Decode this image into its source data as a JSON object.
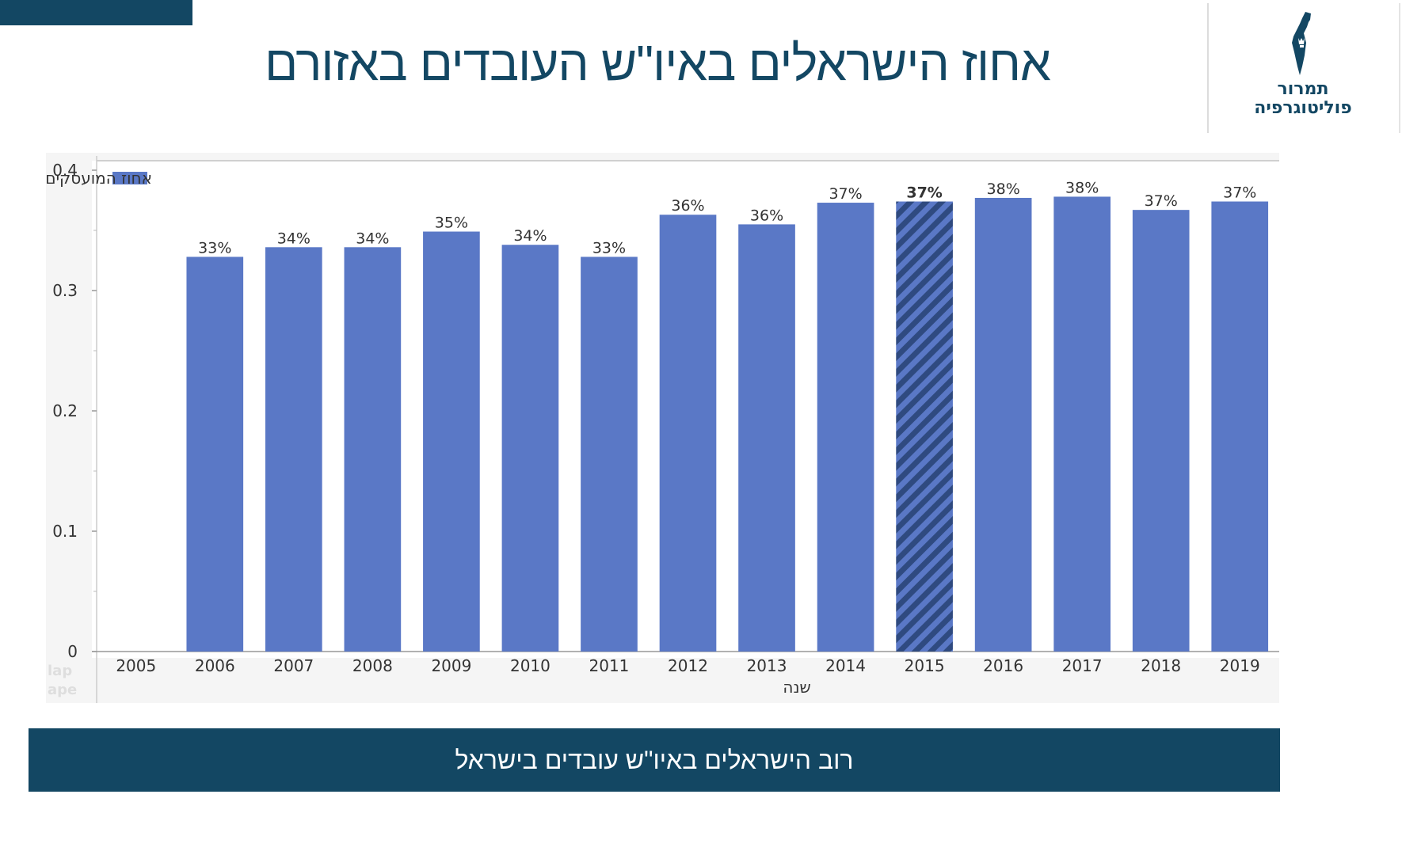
{
  "slide": {
    "title": "אחוז הישראלים באיו\"ש העובדים באזורם",
    "caption": "רוב הישראלים באיו\"ש עובדים בישראל"
  },
  "logo": {
    "line1": "תמרור",
    "line2": "פוליטוגרפיה",
    "icon": "israel-map-icon"
  },
  "watermark": [
    "lap",
    "ape"
  ],
  "colors": {
    "accent": "#134763",
    "bar": "#5a78c6",
    "bar_hatch": "#2f4a80",
    "panel_bg": "#f5f5f5"
  },
  "chart_data": {
    "type": "bar",
    "categories": [
      "2005",
      "2006",
      "2007",
      "2008",
      "2009",
      "2010",
      "2011",
      "2012",
      "2013",
      "2014",
      "2015",
      "2016",
      "2017",
      "2018",
      "2019"
    ],
    "values": [
      null,
      0.328,
      0.336,
      0.336,
      0.349,
      0.338,
      0.328,
      0.363,
      0.355,
      0.373,
      0.374,
      0.377,
      0.378,
      0.367,
      0.374
    ],
    "data_labels": [
      "",
      "33%",
      "34%",
      "34%",
      "35%",
      "34%",
      "33%",
      "36%",
      "36%",
      "37%",
      "37%",
      "38%",
      "38%",
      "37%",
      "37%"
    ],
    "highlighted_category": "2015",
    "series": [
      {
        "name": "אחוז המועסקים הישראלים שגרים באיו\"ש"
      }
    ],
    "xlabel": "שנה",
    "ylabel": "",
    "ylim": [
      0,
      0.4
    ],
    "yticks": [
      "0",
      "0.1",
      "0.2",
      "0.3",
      "0.4"
    ],
    "ytick_values": [
      0,
      0.1,
      0.2,
      0.3,
      0.4
    ],
    "grid": false,
    "legend_position": "top-left"
  }
}
